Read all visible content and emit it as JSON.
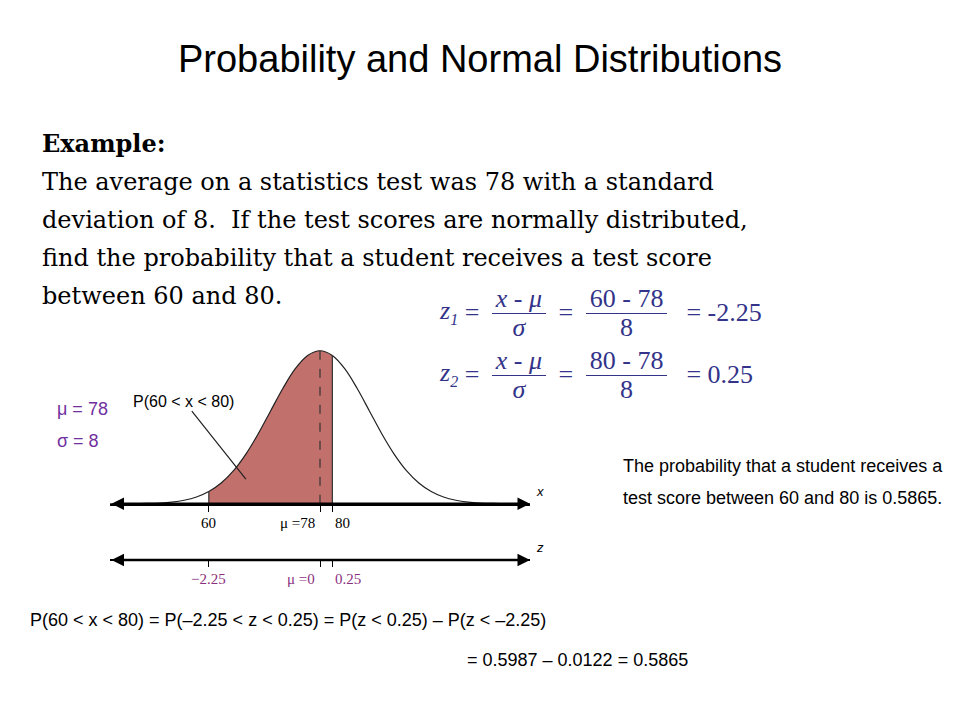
{
  "slide": {
    "title": "Probability and Normal Distributions",
    "example": {
      "heading": "Example:",
      "lines": [
        "The average on a statistics test was 78 with a standard",
        "deviation of 8.  If the test scores are normally distributed,",
        "find the probability that a student receives a test score",
        "between 60 and 80."
      ]
    },
    "formulas": [
      {
        "symbol": "z",
        "sub": "1",
        "numerator": "x - μ",
        "denominator": "σ",
        "numerator2": "60 - 78",
        "denominator2": "8",
        "result": "-2.25"
      },
      {
        "symbol": "z",
        "sub": "2",
        "numerator": "x - μ",
        "denominator": "σ",
        "numerator2": "80 - 78",
        "denominator2": "8",
        "result": "0.25"
      }
    ],
    "parameters": [
      "μ = 78",
      "σ = 8"
    ],
    "conclusion": "The probability that a student receives a test score between 60 and 80 is 0.5865.",
    "equation_lines": [
      "P(60 < x < 80) = P(–2.25 < z < 0.25) = P(z < 0.25) – P(z < –2.25)",
      "= 0.5987 – 0.0122 = 0.5865"
    ]
  },
  "chart_data": {
    "type": "line",
    "x": [
      44,
      46,
      48,
      50,
      52,
      54,
      56,
      58,
      60,
      62,
      64,
      66,
      68,
      70,
      72,
      74,
      76,
      78,
      80,
      82,
      84,
      86,
      88,
      90,
      92,
      94,
      96,
      98,
      100,
      102,
      104,
      106,
      108,
      110,
      112
    ],
    "values": [
      1e-05,
      2e-05,
      4e-05,
      0.00011,
      0.00025,
      0.00055,
      0.00114,
      0.00219,
      0.00397,
      0.00675,
      0.01078,
      0.01619,
      0.02283,
      0.03025,
      0.03764,
      0.04401,
      0.04833,
      0.04987,
      0.04833,
      0.04401,
      0.03764,
      0.03025,
      0.02283,
      0.01619,
      0.01078,
      0.00675,
      0.00397,
      0.00219,
      0.00114,
      0.00055,
      0.00025,
      0.00011,
      4e-05,
      2e-05,
      1e-05
    ],
    "shaded_range": [
      60,
      80
    ],
    "color": "#c2706c",
    "xlim": [
      44,
      112
    ],
    "xticks": [
      60,
      {
        "value": 78,
        "label": "μ =78"
      },
      80
    ],
    "x_label": "x",
    "x2lim": [
      -4.25,
      4.25
    ],
    "x2ticks": [
      {
        "value": -2.25,
        "label": "−2.25"
      },
      {
        "value": 0,
        "label": "μ =0"
      },
      0.25
    ],
    "x2_label": "z",
    "ylim": [
      0,
      0.055
    ],
    "tick_labels": "x",
    "grid": false,
    "annotations": [
      {
        "text": "P(60 < x < 80)",
        "x": 66,
        "y": 0.008
      }
    ]
  }
}
